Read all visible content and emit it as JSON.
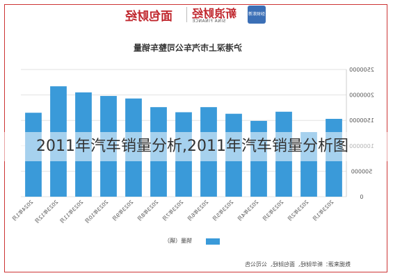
{
  "header": {
    "logo_left": "面包财经",
    "logo_right": "新浪财经",
    "logo_right_sub": "SINA FINANCE",
    "logo_badge": "新浪财经"
  },
  "overlay_caption": "2011年汽车销量分析,2011年汽车销量分析图",
  "source_note": "数据来源：新华财经、面包财经、公司公告",
  "chart_data": {
    "type": "bar",
    "title": "沪港深上市汽车公司整车销量",
    "categories": [
      "2024年1月",
      "2023年12月",
      "2023年11月",
      "2023年10月",
      "2023年9月",
      "2023年8月",
      "2023年7月",
      "2023年6月",
      "2023年5月",
      "2023年4月",
      "2023年3月",
      "2023年2月",
      "2023年1月"
    ],
    "series": [
      {
        "name": "销量（辆）",
        "values": [
          1650000,
          2170000,
          2050000,
          1980000,
          1930000,
          1760000,
          1660000,
          1760000,
          1630000,
          1490000,
          1670000,
          1270000,
          1530000
        ]
      }
    ],
    "ylim": [
      0,
      2500000
    ],
    "yticks": [
      "0",
      "500000",
      "1000000",
      "1500000",
      "2000000",
      "2500000"
    ],
    "axis_position": "right",
    "mirrored": true,
    "grid": true,
    "legend": "bottom",
    "bar_color": "#3a9ad9"
  }
}
